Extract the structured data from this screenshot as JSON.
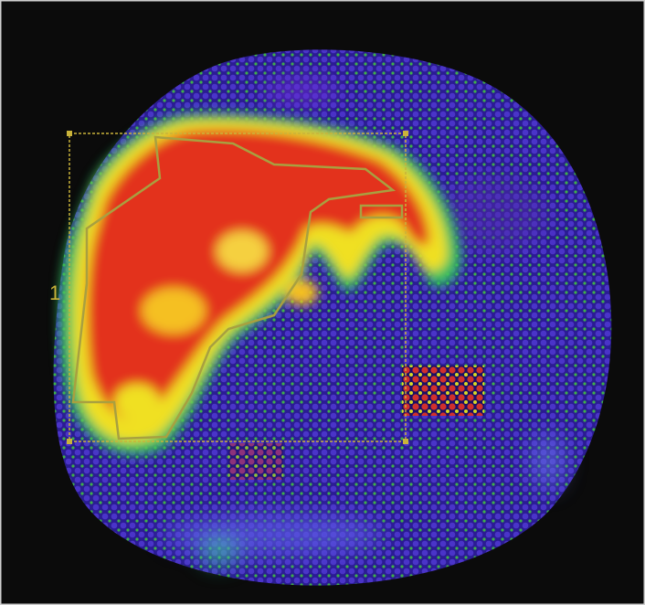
{
  "region_label": "1"
}
